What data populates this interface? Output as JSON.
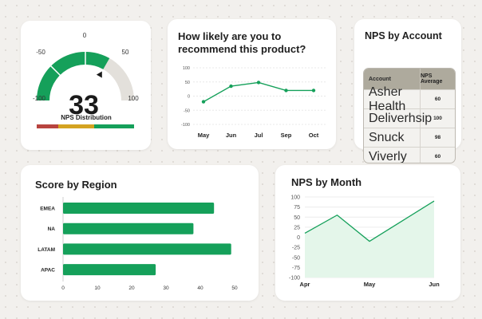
{
  "gauge_card": {
    "value": "33",
    "title": "NPS Distribution",
    "labels": {
      "min": "-100",
      "low": "-50",
      "mid": "0",
      "high": "50",
      "max": "100"
    },
    "colors": {
      "fill": "#15a05a",
      "track": "#e3e0db",
      "red": "#b8443f",
      "yellow": "#d4a321",
      "green": "#15a05a"
    }
  },
  "likely_card": {
    "title_line1": "How likely are you to",
    "title_line2": "recommend this product?"
  },
  "account_card": {
    "title": "NPS by Account",
    "columns": [
      "Account",
      "NPS Average"
    ],
    "rows": [
      {
        "account": "Asher Health",
        "value": "60"
      },
      {
        "account": "Deliverhsip",
        "value": "100"
      },
      {
        "account": "Snuck",
        "value": "98"
      },
      {
        "account": "Viverly",
        "value": "60"
      }
    ]
  },
  "region_card": {
    "title": "Score by Region"
  },
  "month_card": {
    "title": "NPS by Month"
  },
  "chart_data": [
    {
      "type": "line",
      "title": "How likely are you to recommend this product?",
      "categories": [
        "May",
        "Jun",
        "Jul",
        "Sep",
        "Oct"
      ],
      "values": [
        -20,
        35,
        48,
        20,
        20
      ],
      "ylim": [
        -100,
        100
      ],
      "yticks": [
        "100",
        "50",
        "0",
        "-50",
        "-100"
      ],
      "color": "#15a05a"
    },
    {
      "type": "bar",
      "orientation": "horizontal",
      "title": "Score by Region",
      "categories": [
        "EMEA",
        "NA",
        "LATAM",
        "APAC"
      ],
      "values": [
        44,
        38,
        49,
        27
      ],
      "xlim": [
        0,
        50
      ],
      "xticks": [
        "0",
        "10",
        "20",
        "30",
        "40",
        "50"
      ],
      "color": "#15a05a"
    },
    {
      "type": "area",
      "title": "NPS by Month",
      "categories": [
        "Apr",
        "May",
        "Jun"
      ],
      "x": [
        0,
        0.5,
        1,
        1.5,
        2
      ],
      "values": [
        10,
        55,
        -10,
        40,
        90
      ],
      "ylim": [
        -100,
        100
      ],
      "yticks": [
        "100",
        "75",
        "50",
        "25",
        "0",
        "-25",
        "-50",
        "-75",
        "-100"
      ],
      "color": "#15a05a",
      "fill": "#e4f6ea"
    }
  ]
}
